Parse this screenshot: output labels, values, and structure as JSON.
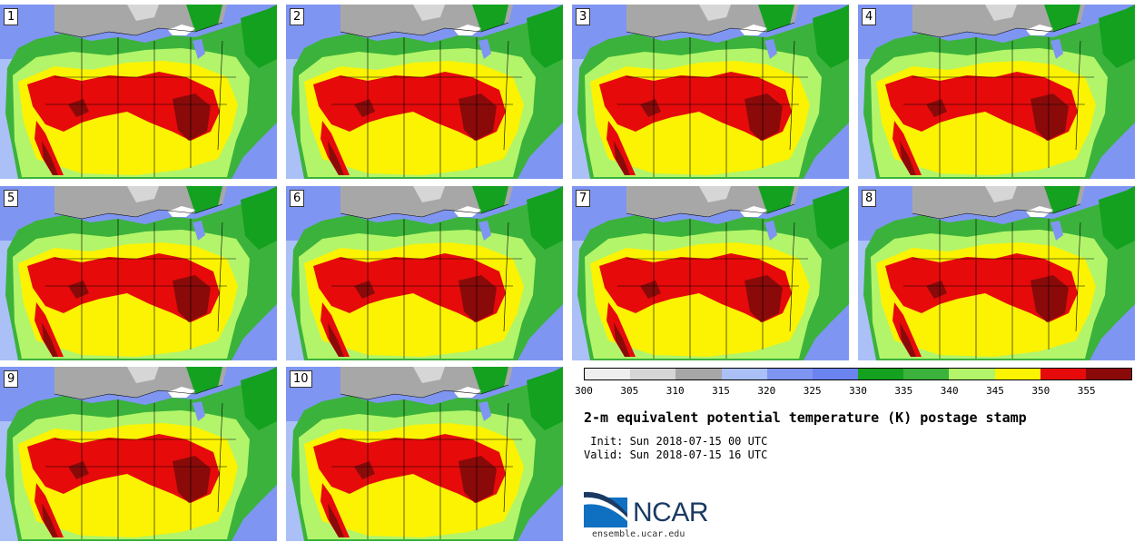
{
  "panels": [
    {
      "label": "1"
    },
    {
      "label": "2"
    },
    {
      "label": "3"
    },
    {
      "label": "4"
    },
    {
      "label": "5"
    },
    {
      "label": "6"
    },
    {
      "label": "7"
    },
    {
      "label": "8"
    },
    {
      "label": "9"
    },
    {
      "label": "10"
    }
  ],
  "colorbar": {
    "colors": [
      "#efefef",
      "#d6d6d6",
      "#a7a7a7",
      "#aac0f7",
      "#7f95f2",
      "#6b83ef",
      "#13a11f",
      "#3bb23b",
      "#b2f56a",
      "#fbf301",
      "#e60a0b",
      "#8a0a0a"
    ],
    "ticks": [
      "300",
      "305",
      "310",
      "315",
      "320",
      "325",
      "330",
      "335",
      "340",
      "345",
      "350",
      "355"
    ]
  },
  "title": "2-m equivalent potential temperature (K) postage stamp",
  "init": " Init: Sun 2018-07-15 00 UTC",
  "valid": "Valid: Sun 2018-07-15 16 UTC",
  "logo": {
    "name": "NCAR",
    "url": "ensemble.ucar.edu"
  }
}
